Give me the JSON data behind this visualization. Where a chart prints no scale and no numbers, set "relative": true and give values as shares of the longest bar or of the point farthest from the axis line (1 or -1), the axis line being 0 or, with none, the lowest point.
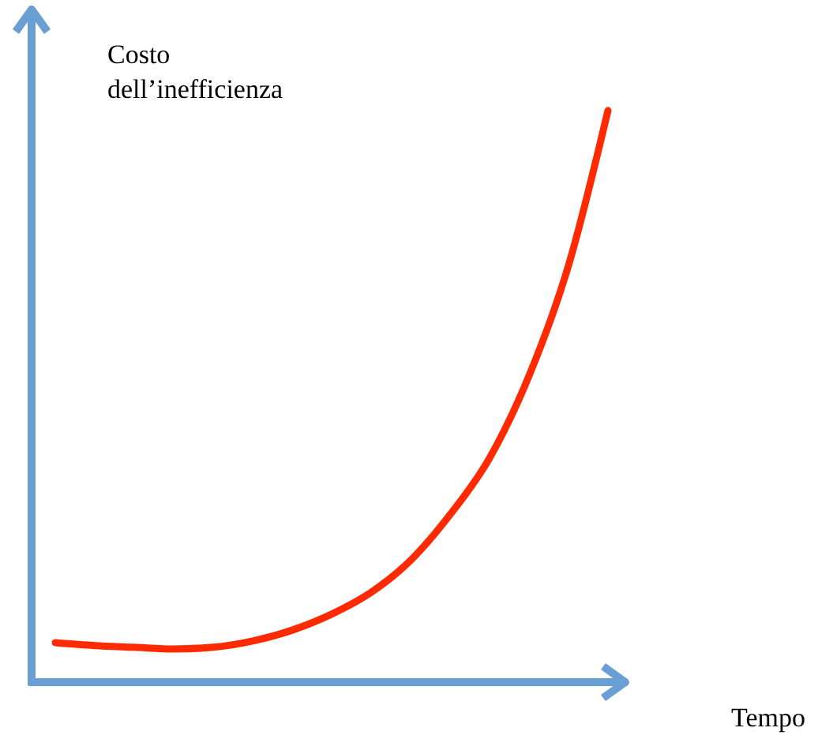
{
  "chart_data": {
    "type": "line",
    "relative": true,
    "ylabel": "Costo\ndell’inefficienza",
    "xlabel": "Tempo",
    "categories": [
      null,
      null,
      null,
      null,
      null,
      null,
      null,
      null,
      null,
      null,
      null,
      null,
      null,
      null,
      null
    ],
    "series": [
      {
        "color": "#ff2a00",
        "values": [
          0.069,
          0.064,
          0.061,
          0.058,
          0.061,
          0.072,
          0.091,
          0.119,
          0.157,
          0.213,
          0.293,
          0.392,
          0.536,
          0.729,
          1
        ]
      }
    ]
  }
}
